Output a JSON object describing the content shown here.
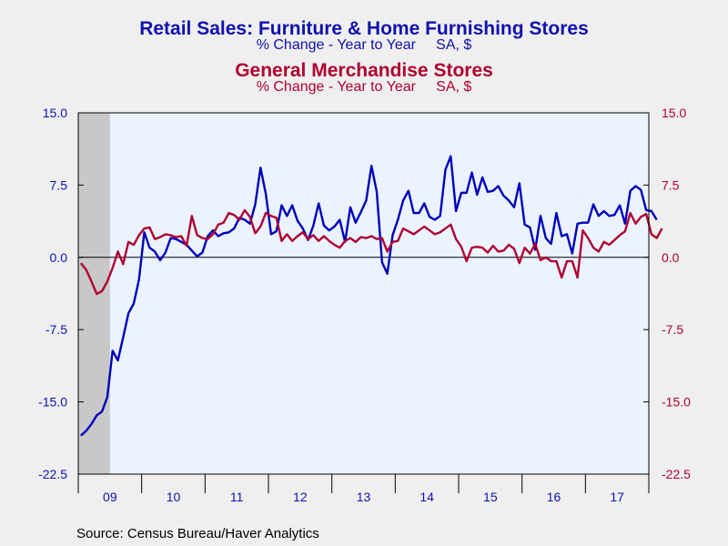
{
  "chart_data": {
    "type": "line",
    "title": "Retail Sales: Furniture & Home Furnishing Stores",
    "subtitle": "% Change - Year to Year     SA, $",
    "title2": "General Merchandise Stores",
    "subtitle2": "% Change - Year to Year     SA, $",
    "source": "Source:  Census Bureau/Haver Analytics",
    "ylim": [
      -22.5,
      15.0
    ],
    "y_ticks_left": [
      "15.0",
      "7.5",
      "0.0",
      "-7.5",
      "-15.0",
      "-22.5"
    ],
    "y_ticks_right": [
      "15.0",
      "7.5",
      "0.0",
      "-7.5",
      "-15.0",
      "-22.5"
    ],
    "x_tick_labels": [
      "09",
      "10",
      "11",
      "12",
      "13",
      "14",
      "15",
      "16",
      "17"
    ],
    "x_range": [
      "2009-01",
      "2017-12"
    ],
    "recession_shading": [
      "2009-01",
      "2009-06"
    ],
    "zero_line": true,
    "grid": false,
    "legend": "titles-as-legend",
    "series": [
      {
        "name": "Retail Sales: Furniture & Home Furnishing Stores",
        "axis": "left",
        "color": "#0000bb",
        "start": "2009-01",
        "values": [
          -18.5,
          -18.0,
          -17.3,
          -16.4,
          -16.0,
          -14.5,
          -9.7,
          -10.7,
          -8.3,
          -5.8,
          -4.8,
          -2.3,
          2.6,
          1.0,
          0.6,
          -0.3,
          0.5,
          2.0,
          1.9,
          1.6,
          1.3,
          0.7,
          0.1,
          0.5,
          2.2,
          2.8,
          2.2,
          2.5,
          2.6,
          3.0,
          4.1,
          3.9,
          3.5,
          5.5,
          9.3,
          6.6,
          2.4,
          2.7,
          5.4,
          4.3,
          5.4,
          3.8,
          3.0,
          1.8,
          3.3,
          5.6,
          3.3,
          2.8,
          3.2,
          3.9,
          1.6,
          5.2,
          3.6,
          4.7,
          5.9,
          9.5,
          6.8,
          -0.5,
          -1.7,
          2.3,
          3.9,
          5.9,
          6.9,
          4.6,
          4.6,
          5.6,
          4.2,
          3.9,
          4.3,
          9.1,
          10.5,
          4.8,
          6.7,
          6.7,
          8.8,
          6.5,
          8.3,
          6.8,
          6.9,
          7.4,
          6.4,
          5.9,
          5.2,
          7.7,
          3.4,
          3.1,
          0.8,
          4.3,
          2.0,
          1.4,
          4.6,
          2.2,
          2.4,
          0.4,
          3.5,
          3.6,
          3.6,
          5.5,
          4.3,
          4.8,
          4.3,
          4.4,
          5.4,
          3.5,
          6.9,
          7.4,
          7.0,
          4.9,
          4.8,
          3.9
        ]
      },
      {
        "name": "General Merchandise Stores",
        "axis": "right",
        "color": "#b00030",
        "start": "2009-01",
        "values": [
          -0.6,
          -1.3,
          -2.5,
          -3.8,
          -3.5,
          -2.5,
          -1.1,
          0.6,
          -0.7,
          1.6,
          1.3,
          2.3,
          3.0,
          3.1,
          1.9,
          2.1,
          2.4,
          2.3,
          2.1,
          2.2,
          1.2,
          4.3,
          2.3,
          2.0,
          1.9,
          2.4,
          3.4,
          3.6,
          4.6,
          4.4,
          3.9,
          4.9,
          4.2,
          2.5,
          3.2,
          4.6,
          4.3,
          4.1,
          1.7,
          2.4,
          1.7,
          2.2,
          2.6,
          1.9,
          2.3,
          1.7,
          2.2,
          1.7,
          1.3,
          1.0,
          1.7,
          2.0,
          1.6,
          2.1,
          2.0,
          2.2,
          1.9,
          2.0,
          0.6,
          1.6,
          1.7,
          3.0,
          2.7,
          2.4,
          2.8,
          3.2,
          2.8,
          2.4,
          2.6,
          3.0,
          3.4,
          1.9,
          1.1,
          -0.4,
          1.0,
          1.1,
          1.0,
          0.5,
          1.2,
          0.6,
          0.7,
          1.3,
          0.9,
          -0.6,
          1.0,
          0.4,
          1.4,
          -0.3,
          0.0,
          -0.4,
          -0.4,
          -2.1,
          -0.4,
          -0.4,
          -2.1,
          2.8,
          2.0,
          1.0,
          0.6,
          1.6,
          1.3,
          1.8,
          2.3,
          2.7,
          4.6,
          3.5,
          4.2,
          4.5,
          2.4,
          2.0,
          3.0
        ]
      }
    ]
  }
}
